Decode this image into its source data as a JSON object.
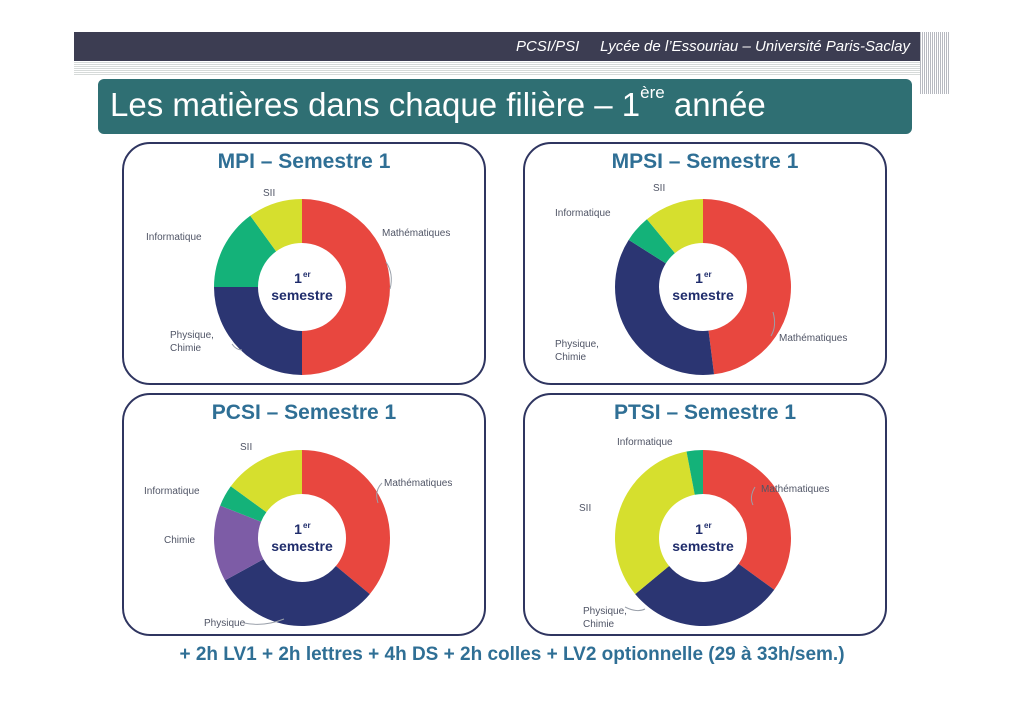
{
  "header": {
    "text": "PCSI/PSI     Lycée de l’Essouriau – Université Paris-Saclay"
  },
  "title": {
    "main": "Les matières dans chaque filière – 1",
    "sup": "ère",
    "end": " année"
  },
  "footer": {
    "text": "+ 2h LV1 + 2h lettres + 4h DS + 2h colles + LV2 optionnelle (29 à 33h/sem.)"
  },
  "center": {
    "num": "1",
    "sup": "er",
    "word": "semestre"
  },
  "colors": {
    "math": "#e8473f",
    "phys": "#2b3572",
    "info": "#14b279",
    "sii": "#d6df2e",
    "chim": "#7d5ca6"
  },
  "chart_data": [
    {
      "type": "pie",
      "title": "MPI – Semestre 1",
      "slices": [
        {
          "label": "Mathématiques",
          "value": 50,
          "color": "#e8473f"
        },
        {
          "label": "Physique, Chimie",
          "value": 25,
          "color": "#2b3572"
        },
        {
          "label": "Informatique",
          "value": 15,
          "color": "#14b279"
        },
        {
          "label": "SII",
          "value": 10,
          "color": "#d6df2e"
        }
      ]
    },
    {
      "type": "pie",
      "title": "MPSI – Semestre 1",
      "slices": [
        {
          "label": "Mathématiques",
          "value": 48,
          "color": "#e8473f"
        },
        {
          "label": "Physique, Chimie",
          "value": 36,
          "color": "#2b3572"
        },
        {
          "label": "Informatique",
          "value": 5,
          "color": "#14b279"
        },
        {
          "label": "SII",
          "value": 11,
          "color": "#d6df2e"
        }
      ]
    },
    {
      "type": "pie",
      "title": "PCSI – Semestre 1",
      "slices": [
        {
          "label": "Mathématiques",
          "value": 36,
          "color": "#e8473f"
        },
        {
          "label": "Physique",
          "value": 31,
          "color": "#2b3572"
        },
        {
          "label": "Chimie",
          "value": 14,
          "color": "#7d5ca6"
        },
        {
          "label": "Informatique",
          "value": 4,
          "color": "#14b279"
        },
        {
          "label": "SII",
          "value": 15,
          "color": "#d6df2e"
        }
      ]
    },
    {
      "type": "pie",
      "title": "PTSI – Semestre 1",
      "slices": [
        {
          "label": "Mathématiques",
          "value": 35,
          "color": "#e8473f"
        },
        {
          "label": "Physique, Chimie",
          "value": 29,
          "color": "#2b3572"
        },
        {
          "label": "SII",
          "value": 33,
          "color": "#d6df2e"
        },
        {
          "label": "Informatique",
          "value": 3,
          "color": "#14b279"
        }
      ]
    }
  ]
}
